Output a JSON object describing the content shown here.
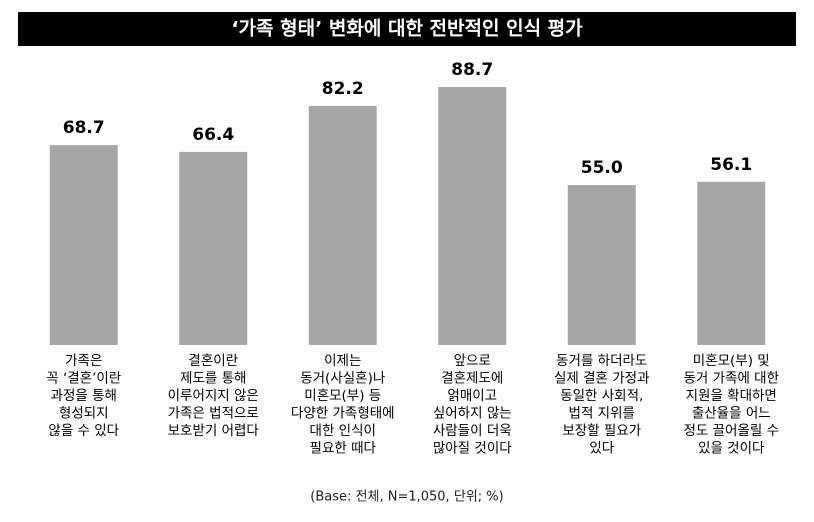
{
  "chart_data": {
    "type": "bar",
    "title": "‘가족 형태’ 변화에 대한 전반적인 인식 평가",
    "categories": [
      [
        "가족은",
        "꼭 ‘결혼’이란",
        "과정을 통해",
        "형성되지",
        "않을 수 있다"
      ],
      [
        "결혼이란",
        "제도를 통해",
        "이루어지지 않은",
        "가족은 법적으로",
        "보호받기 어렵다"
      ],
      [
        "이제는",
        "동거(사실혼)나",
        "미혼모(부) 등",
        "다양한 가족형태에",
        "대한 인식이",
        "필요한 때다"
      ],
      [
        "앞으로",
        "결혼제도에",
        "얽매이고",
        "싶어하지 않는",
        "사람들이 더욱",
        "많아질 것이다"
      ],
      [
        "동거를 하더라도",
        "실제 결혼 가정과",
        "동일한 사회적,",
        "법적 지위를",
        "보장할 필요가",
        "있다"
      ],
      [
        "미혼모(부) 및",
        "동거 가족에 대한",
        "지원을 확대하면",
        "출산율을 어느",
        "정도 끌어올릴 수",
        "있을 것이다"
      ]
    ],
    "values": [
      68.7,
      66.4,
      82.2,
      88.7,
      55.0,
      56.1
    ],
    "value_labels": [
      "68.7",
      "66.4",
      "82.2",
      "88.7",
      "55.0",
      "56.1"
    ],
    "color": "#a6a6a6",
    "note": "(Base: 전체, N=1,050, 단위; %)"
  }
}
